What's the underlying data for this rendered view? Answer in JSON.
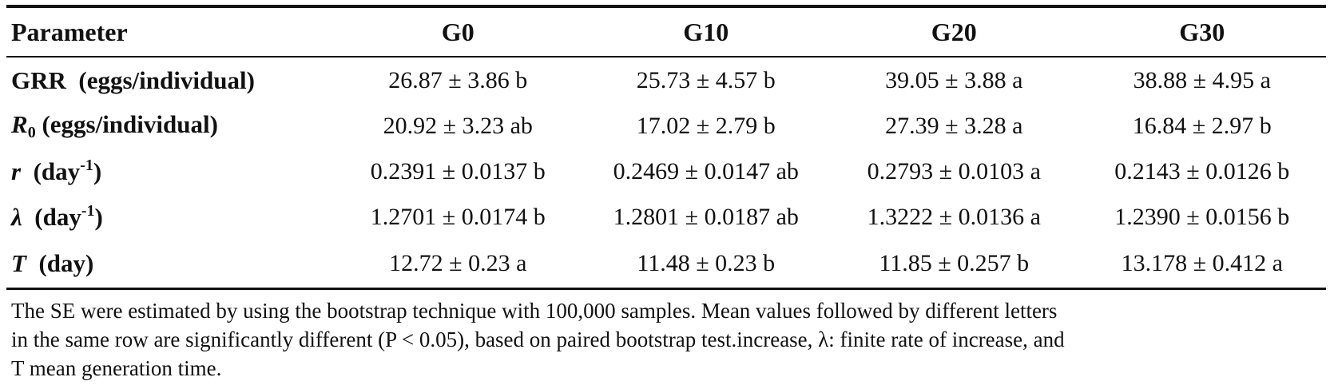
{
  "table": {
    "headers": [
      "Parameter",
      "G0",
      "G10",
      "G20",
      "G30"
    ],
    "rows": [
      {
        "param_prefix": "GRR",
        "param_suffix": "(eggs/individual)",
        "values": [
          "26.87 ± 3.86 b",
          "25.73 ± 4.57 b",
          "39.05 ± 3.88 a",
          "38.88 ± 4.95 a"
        ]
      },
      {
        "param_prefix": "R",
        "param_sub": "0",
        "param_suffix": "(eggs/individual)",
        "values": [
          "20.92 ± 3.23 ab",
          "17.02 ± 2.79 b",
          "27.39 ± 3.28 a",
          "16.84 ± 2.97 b"
        ]
      },
      {
        "param_prefix": "r",
        "param_suffix": "(day",
        "param_sup": "-1",
        "param_close": ")",
        "values": [
          "0.2391 ± 0.0137 b",
          "0.2469 ± 0.0147 ab",
          "0.2793 ± 0.0103 a",
          "0.2143 ± 0.0126 b"
        ]
      },
      {
        "param_prefix": "λ",
        "param_suffix": "(day",
        "param_sup": "-1",
        "param_close": ")",
        "values": [
          "1.2701 ± 0.0174 b",
          "1.2801 ± 0.0187 ab",
          "1.3222 ± 0.0136 a",
          "1.2390 ± 0.0156 b"
        ]
      },
      {
        "param_prefix": "T",
        "param_suffix": "(day)",
        "values": [
          "12.72 ± 0.23 a",
          "11.48 ± 0.23 b",
          "11.85 ± 0.257 b",
          "13.178 ± 0.412 a"
        ]
      }
    ]
  },
  "note": {
    "line1": "The SE were estimated by using the bootstrap technique with 100,000 samples. Mean values followed by different letters",
    "line2": "in the same row are significantly different (P < 0.05), based on paired bootstrap test.increase, λ: finite rate of increase, and",
    "line3": "T mean generation time."
  }
}
